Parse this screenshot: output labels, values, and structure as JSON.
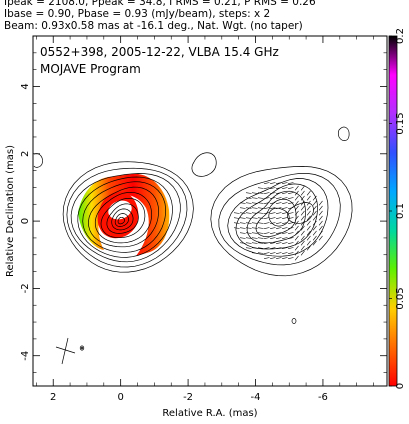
{
  "header": {
    "line1": "Ipeak = 2108.0, Ppeak = 34.8, I RMS = 0.21, P RMS = 0.26",
    "line2": "Ibase = 0.90, Pbase = 0.93 (mJy/beam), steps: x 2",
    "line3": "Beam: 0.93x0.58 mas at -16.1 deg., Nat. Wgt. (no taper)"
  },
  "chart_data": {
    "type": "contour",
    "labels": {
      "source": "0552+398, 2005-12-22, VLBA 15.4 GHz",
      "program": "MOJAVE Program"
    },
    "xlabel": "Relative R.A. (mas)",
    "ylabel": "Relative Declination (mas)",
    "xlim": [
      2.6,
      -7.9
    ],
    "ylim": [
      -4.9,
      5.5
    ],
    "x_ticks": [
      2,
      0,
      -2,
      -4,
      -6
    ],
    "y_ticks": [
      -4,
      -2,
      0,
      2,
      4
    ],
    "colorbar": {
      "min": 0,
      "max": 0.2,
      "ticks": [
        0,
        0.05,
        0.1,
        0.15,
        0.2
      ],
      "stops": [
        "#ff0000",
        "#ff6a00",
        "#ffd000",
        "#5ff000",
        "#00d8a0",
        "#00a8ff",
        "#3050ff",
        "#b030ff",
        "#ff00ff",
        "#000000"
      ]
    },
    "contour_levels_mjy_per_beam": [
      0.9,
      1.8,
      3.6,
      7.2,
      14.4,
      28.8,
      57.6,
      115.2,
      230.4,
      460.8,
      921.6,
      1843.2
    ],
    "panels": [
      {
        "name": "Stokes I contours with fractional polarization",
        "center_ra": 0,
        "center_dec": 0
      },
      {
        "name": "Polarized intensity contours with EVPA ticks",
        "center_ra": -4.75,
        "center_dec": 0
      }
    ],
    "beam": {
      "major_mas": 0.93,
      "minor_mas": 0.58,
      "pa_deg": -16.1
    }
  }
}
